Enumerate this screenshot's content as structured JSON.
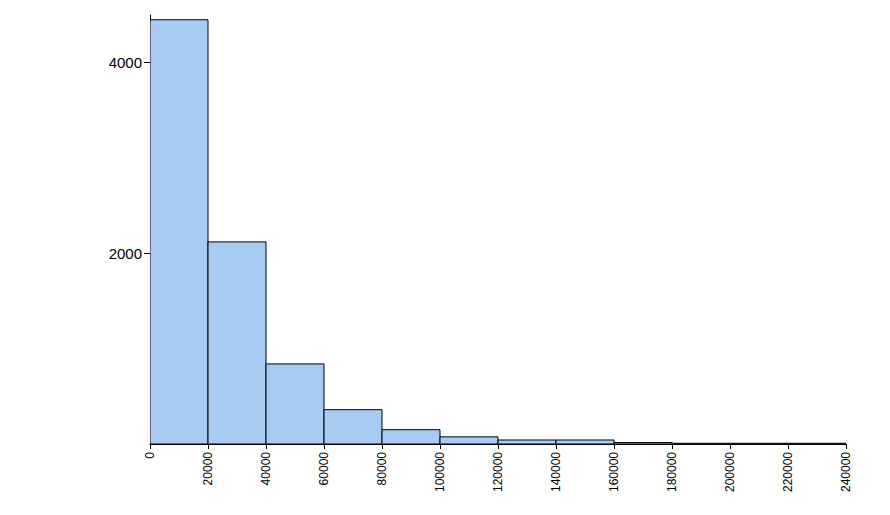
{
  "chart_data": {
    "type": "histogram",
    "bins": [
      0,
      20000,
      40000,
      60000,
      80000,
      100000,
      120000,
      140000,
      160000,
      180000,
      200000,
      220000,
      240000
    ],
    "counts": [
      4450,
      2120,
      840,
      360,
      150,
      75,
      42,
      42,
      15,
      8,
      8,
      8
    ],
    "color": "#a8cbf3",
    "xlim": [
      0,
      240000
    ],
    "xticks": [
      0,
      20000,
      40000,
      60000,
      80000,
      100000,
      120000,
      140000,
      160000,
      180000,
      200000,
      220000,
      240000
    ],
    "ylim": [
      0,
      4500
    ],
    "yticks": [
      2000,
      4000
    ],
    "grid": false
  }
}
